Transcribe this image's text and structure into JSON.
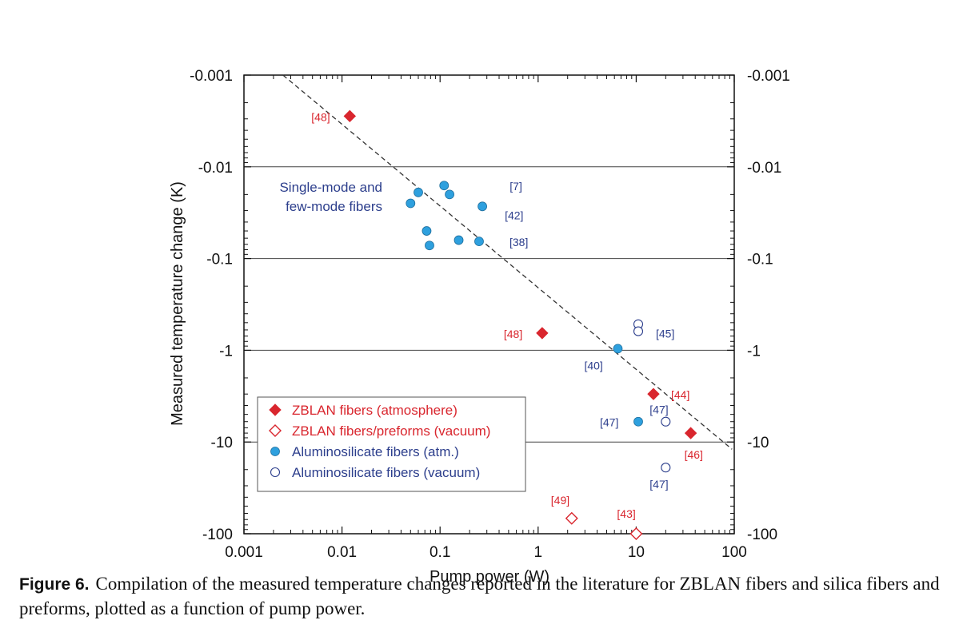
{
  "colors": {
    "zblan": "#d9262e",
    "alumino": "#2ea0de",
    "alumino_outline": "#2c3e8c",
    "ref_blue": "#2c3e8c",
    "ref_red": "#d9262e",
    "axis": "#111111"
  },
  "chart_data": {
    "type": "scatter",
    "xlabel": "Pump power (W)",
    "ylabel": "Measured temperature change (K)",
    "xscale": "log",
    "yscale": "log",
    "xlim": [
      0.001,
      100
    ],
    "ylim": [
      -0.001,
      -100
    ],
    "x_ticks": [
      "0.001",
      "0.01",
      "0.1",
      "1",
      "10",
      "100"
    ],
    "y_ticks": [
      "-0.001",
      "-0.01",
      "-0.1",
      "-1",
      "-10",
      "-100"
    ],
    "grid": "horizontal lines at y = -0.01, -0.1, -1, -10",
    "legend_position": "lower-left",
    "series": [
      {
        "name": "ZBLAN fibers (atmosphere)",
        "marker": "filled-diamond",
        "points": [
          [
            0.012,
            -0.0028
          ],
          [
            1.1,
            -0.65
          ],
          [
            15,
            -3.0
          ],
          [
            36,
            -8.0
          ]
        ]
      },
      {
        "name": "ZBLAN fibers/preforms (vacuum)",
        "marker": "open-diamond",
        "points": [
          [
            2.2,
            -68
          ],
          [
            10,
            -100
          ]
        ]
      },
      {
        "name": "Aluminosilicate fibers (atm.)",
        "marker": "filled-circle",
        "points": [
          [
            0.06,
            -0.019
          ],
          [
            0.05,
            -0.025
          ],
          [
            0.11,
            -0.016
          ],
          [
            0.125,
            -0.02
          ],
          [
            0.27,
            -0.027
          ],
          [
            0.073,
            -0.05
          ],
          [
            0.078,
            -0.072
          ],
          [
            0.155,
            -0.063
          ],
          [
            0.25,
            -0.065
          ],
          [
            6.5,
            -0.96
          ],
          [
            10.5,
            -6.0
          ]
        ]
      },
      {
        "name": "Aluminosilicate fibers (vacuum)",
        "marker": "open-circle",
        "points": [
          [
            10.5,
            -0.52
          ],
          [
            10.5,
            -0.62
          ],
          [
            20,
            -6.0
          ],
          [
            20,
            -19
          ]
        ]
      }
    ],
    "trend_line": {
      "style": "dashed",
      "points": [
        [
          0.0025,
          -0.001
        ],
        [
          95,
          -12
        ]
      ]
    },
    "annotations": {
      "region_label": [
        "Single-mode and",
        "few-mode fibers"
      ],
      "refs": [
        {
          "text": "[48]",
          "color": "red",
          "at": [
            0.012,
            -0.0028
          ]
        },
        {
          "text": "[7]",
          "color": "blue",
          "at": [
            0.11,
            -0.016
          ]
        },
        {
          "text": "[42]",
          "color": "blue",
          "at": [
            0.27,
            -0.027
          ]
        },
        {
          "text": "[38]",
          "color": "blue",
          "at": [
            0.25,
            -0.065
          ]
        },
        {
          "text": "[48]",
          "color": "red",
          "at": [
            1.1,
            -0.65
          ]
        },
        {
          "text": "[45]",
          "color": "blue",
          "at": [
            10.5,
            -0.57
          ]
        },
        {
          "text": "[40]",
          "color": "blue",
          "at": [
            6.5,
            -0.96
          ]
        },
        {
          "text": "[44]",
          "color": "red",
          "at": [
            15,
            -3.0
          ]
        },
        {
          "text": "[47]",
          "color": "blue",
          "at": [
            20,
            -6.0
          ]
        },
        {
          "text": "[47]",
          "color": "blue",
          "at": [
            10.5,
            -6.0
          ]
        },
        {
          "text": "[46]",
          "color": "red",
          "at": [
            36,
            -8.0
          ]
        },
        {
          "text": "[47]",
          "color": "blue",
          "at": [
            20,
            -19
          ]
        },
        {
          "text": "[49]",
          "color": "red",
          "at": [
            2.2,
            -68
          ]
        },
        {
          "text": "[43]",
          "color": "red",
          "at": [
            10,
            -100
          ]
        }
      ]
    }
  },
  "caption": {
    "label": "Figure 6.",
    "text": "Compilation of the measured temperature changes reported in the literature for ZBLAN fibers and silica fibers and preforms, plotted as a function of pump power."
  }
}
